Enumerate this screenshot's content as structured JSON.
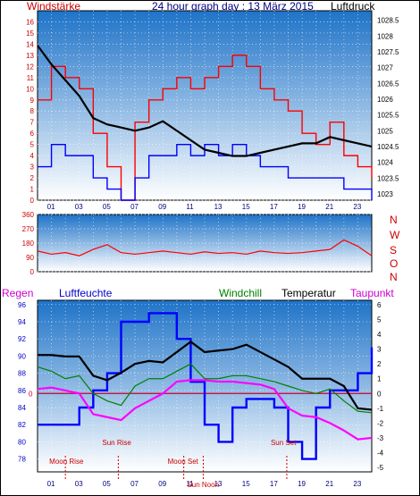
{
  "header": {
    "left_label": "Windstärke",
    "title": "24 hour graph day : 13 März 2015",
    "right_label": "Luftdruck"
  },
  "colors": {
    "wind": "#ff0000",
    "gust": "#0000ff",
    "pressure": "#000000",
    "direction": "#ff0000",
    "windchill": "#008000",
    "temperature": "#000000",
    "dewpoint": "#ff00ff",
    "humidity": "#0000ff",
    "zero_line": "#cc0033",
    "astro": "#cc0000",
    "panel_top": "#1e73c8",
    "panel_bottom": "#ffffff"
  },
  "time_axis": {
    "ticks": [
      "01",
      "03",
      "05",
      "07",
      "09",
      "11",
      "13",
      "15",
      "17",
      "19",
      "21",
      "23"
    ]
  },
  "chart_data": [
    {
      "type": "line",
      "title": "24 hour graph day : 13 März 2015",
      "ylabel_left": "Windstärke",
      "ylabel_right": "Luftdruck",
      "x": [
        0,
        1,
        2,
        3,
        4,
        5,
        6,
        7,
        8,
        9,
        10,
        11,
        12,
        13,
        14,
        15,
        16,
        17,
        18,
        19,
        20,
        21,
        22,
        23,
        24
      ],
      "ylim_left": [
        0,
        17
      ],
      "yticks_left": [
        "0",
        "1",
        "2",
        "3",
        "4",
        "5",
        "6",
        "7",
        "8",
        "9",
        "10",
        "11",
        "12",
        "13",
        "14",
        "15",
        "16"
      ],
      "ylim_right": [
        1022.8,
        1028.8
      ],
      "yticks_right": [
        "1023",
        "1023.5",
        "1024",
        "1024.5",
        "1025",
        "1025.5",
        "1026",
        "1026.5",
        "1027",
        "1027.5",
        "1028",
        "1028.5"
      ],
      "grid": true,
      "series": [
        {
          "name": "Windstärke",
          "values": [
            9,
            12,
            11,
            10,
            6,
            3,
            0,
            7,
            9,
            10,
            11,
            10,
            11,
            12,
            13,
            12,
            10,
            9,
            8,
            6,
            5,
            7,
            4,
            3,
            2
          ]
        },
        {
          "name": "Böen",
          "values": [
            3,
            5,
            4,
            4,
            2,
            1,
            0,
            2,
            4,
            4,
            5,
            4,
            5,
            4,
            5,
            4,
            3,
            3,
            2,
            2,
            2,
            2,
            1,
            1,
            0
          ]
        },
        {
          "name": "Luftdruck",
          "values": [
            1027.7,
            1027.1,
            1026.6,
            1026.1,
            1025.4,
            1025.2,
            1025.1,
            1025.0,
            1025.1,
            1025.3,
            1025.0,
            1024.7,
            1024.4,
            1024.3,
            1024.2,
            1024.2,
            1024.3,
            1024.4,
            1024.5,
            1024.6,
            1024.6,
            1024.8,
            1024.7,
            1024.6,
            1024.5
          ]
        }
      ]
    },
    {
      "type": "line",
      "series_name": "Windrichtung",
      "x": [
        0,
        1,
        2,
        3,
        4,
        5,
        6,
        7,
        8,
        9,
        10,
        11,
        12,
        13,
        14,
        15,
        16,
        17,
        18,
        19,
        20,
        21,
        22,
        23,
        24
      ],
      "ylim": [
        0,
        360
      ],
      "yticks": [
        "0",
        "90",
        "180",
        "270",
        "360"
      ],
      "compass_labels": [
        "N",
        "W",
        "S",
        "O",
        "N"
      ],
      "values": [
        130,
        110,
        120,
        100,
        140,
        170,
        120,
        110,
        120,
        130,
        120,
        110,
        125,
        115,
        120,
        110,
        130,
        120,
        115,
        120,
        130,
        140,
        200,
        160,
        100
      ]
    },
    {
      "type": "line",
      "labels": [
        "Regen",
        "Luftfeuchte",
        "Windchill",
        "Temperatur",
        "Taupunkt"
      ],
      "x": [
        0,
        1,
        2,
        3,
        4,
        5,
        6,
        7,
        8,
        9,
        10,
        11,
        12,
        13,
        14,
        15,
        16,
        17,
        18,
        19,
        20,
        21,
        22,
        23,
        24
      ],
      "ylim_left": [
        76.5,
        96.5
      ],
      "yticks_left": [
        "78",
        "80",
        "82",
        "84",
        "86",
        "88",
        "90",
        "92",
        "94",
        "96"
      ],
      "ylim_right": [
        -5.3,
        6.3
      ],
      "yticks_right": [
        "-5",
        "-4",
        "-3",
        "-2",
        "-1",
        "0",
        "1",
        "2",
        "3",
        "4",
        "5",
        "6"
      ],
      "zero_label": "0",
      "grid": true,
      "series": [
        {
          "name": "Luftfeuchte",
          "values": [
            82,
            82,
            82,
            84,
            86,
            88,
            94,
            94,
            95,
            95,
            92,
            87,
            82,
            80,
            84,
            85,
            85,
            84,
            80,
            78,
            84,
            86,
            86,
            88,
            91
          ]
        },
        {
          "name": "Temperatur",
          "values": [
            2.6,
            2.6,
            2.5,
            2.5,
            1.2,
            0.9,
            1.4,
            2.0,
            2.2,
            2.1,
            2.8,
            3.5,
            2.8,
            2.9,
            3.0,
            3.3,
            2.8,
            2.3,
            1.8,
            1.0,
            1.0,
            1.0,
            0.5,
            -1.0,
            -1.1
          ]
        },
        {
          "name": "Windchill",
          "values": [
            1.8,
            1.5,
            1.0,
            1.2,
            0.0,
            -0.5,
            -0.8,
            0.5,
            1.0,
            1.0,
            1.5,
            2.0,
            1.0,
            1.0,
            1.2,
            1.2,
            1.0,
            0.8,
            0.5,
            0.2,
            0.0,
            0.3,
            -0.5,
            -1.2,
            -1.3
          ]
        },
        {
          "name": "Taupunkt",
          "values": [
            0.3,
            0.4,
            0.2,
            0.0,
            -1.4,
            -1.6,
            -1.8,
            -1.0,
            -0.5,
            0.0,
            0.8,
            0.9,
            0.9,
            0.8,
            0.8,
            0.7,
            0.6,
            0.3,
            -1.0,
            -1.5,
            -1.6,
            -2.0,
            -2.5,
            -3.1,
            -3.0
          ]
        }
      ],
      "annotations": [
        {
          "label": "Sun Rise",
          "hour": 5.8
        },
        {
          "label": "Moon Rise",
          "hour": 2.0
        },
        {
          "label": "Moon Set",
          "hour": 10.5
        },
        {
          "label": "Sun Set",
          "hour": 17.9
        },
        {
          "label": "Sun Noon",
          "hour": 11.9
        }
      ]
    }
  ]
}
